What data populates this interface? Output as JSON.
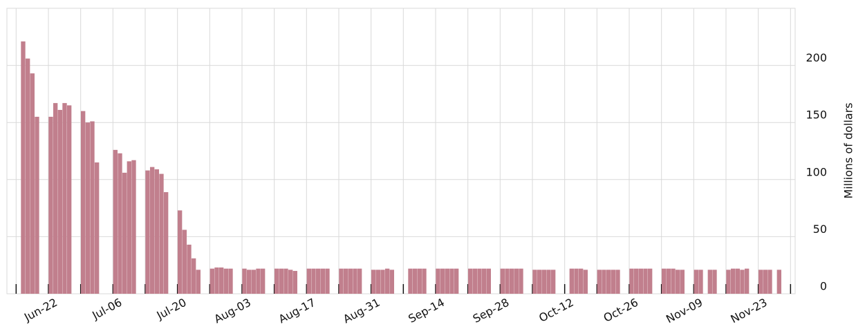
{
  "chart_data": {
    "type": "bar",
    "y_label": "Millions of dollars",
    "color": "#c17f8d",
    "x": [
      "Jun-16",
      "Jun-17",
      "Jun-18",
      "Jun-19",
      "Jun-22",
      "Jun-23",
      "Jun-24",
      "Jun-25",
      "Jun-26",
      "Jun-29",
      "Jun-30",
      "Jul-01",
      "Jul-02",
      "Jul-06",
      "Jul-07",
      "Jul-08",
      "Jul-09",
      "Jul-10",
      "Jul-13",
      "Jul-14",
      "Jul-15",
      "Jul-16",
      "Jul-17",
      "Jul-20",
      "Jul-21",
      "Jul-22",
      "Jul-23",
      "Jul-24",
      "Jul-27",
      "Jul-28",
      "Jul-29",
      "Jul-30",
      "Jul-31",
      "Aug-03",
      "Aug-04",
      "Aug-05",
      "Aug-06",
      "Aug-07",
      "Aug-10",
      "Aug-11",
      "Aug-12",
      "Aug-13",
      "Aug-14",
      "Aug-17",
      "Aug-18",
      "Aug-19",
      "Aug-20",
      "Aug-21",
      "Aug-24",
      "Aug-25",
      "Aug-26",
      "Aug-27",
      "Aug-28",
      "Aug-31",
      "Sep-01",
      "Sep-02",
      "Sep-03",
      "Sep-04",
      "Sep-08",
      "Sep-09",
      "Sep-10",
      "Sep-11",
      "Sep-14",
      "Sep-15",
      "Sep-16",
      "Sep-17",
      "Sep-18",
      "Sep-21",
      "Sep-22",
      "Sep-23",
      "Sep-24",
      "Sep-25",
      "Sep-28",
      "Sep-29",
      "Sep-30",
      "Oct-01",
      "Oct-02",
      "Oct-05",
      "Oct-06",
      "Oct-07",
      "Oct-08",
      "Oct-09",
      "Oct-13",
      "Oct-14",
      "Oct-15",
      "Oct-16",
      "Oct-19",
      "Oct-20",
      "Oct-21",
      "Oct-22",
      "Oct-23",
      "Oct-26",
      "Oct-27",
      "Oct-28",
      "Oct-29",
      "Oct-30",
      "Nov-02",
      "Nov-03",
      "Nov-04",
      "Nov-05",
      "Nov-06",
      "Nov-09",
      "Nov-10",
      "Nov-12",
      "Nov-13",
      "Nov-16",
      "Nov-17",
      "Nov-18",
      "Nov-19",
      "Nov-20",
      "Nov-23",
      "Nov-24",
      "Nov-25",
      "Nov-27"
    ],
    "values": [
      221,
      206,
      193,
      155,
      155,
      167,
      161,
      167,
      165,
      160,
      150,
      151,
      115,
      126,
      123,
      106,
      116,
      117,
      108,
      111,
      109,
      105,
      89,
      73,
      56,
      43,
      31,
      21,
      22,
      23,
      23,
      22,
      22,
      22,
      21,
      21,
      22,
      22,
      22,
      22,
      22,
      21,
      20,
      22,
      22,
      22,
      22,
      22,
      22,
      22,
      22,
      22,
      22,
      21,
      21,
      21,
      22,
      21,
      22,
      22,
      22,
      22,
      22,
      22,
      22,
      22,
      22,
      22,
      22,
      22,
      22,
      22,
      22,
      22,
      22,
      22,
      22,
      21,
      21,
      21,
      21,
      21,
      22,
      22,
      22,
      21,
      21,
      21,
      21,
      21,
      21,
      22,
      22,
      22,
      22,
      22,
      22,
      22,
      22,
      21,
      21,
      21,
      21,
      21,
      21,
      21,
      22,
      22,
      21,
      22,
      21,
      21,
      21,
      21
    ],
    "xlim": [
      "Jun-13",
      "Dec-01"
    ],
    "xticks": [
      "Jun-22",
      "Jul-06",
      "Jul-20",
      "Aug-03",
      "Aug-17",
      "Aug-31",
      "Sep-14",
      "Sep-28",
      "Oct-12",
      "Oct-26",
      "Nov-09",
      "Nov-23"
    ],
    "ylim": [
      0,
      250
    ],
    "yticks": [
      0,
      50,
      100,
      150,
      200
    ],
    "grid": true
  }
}
